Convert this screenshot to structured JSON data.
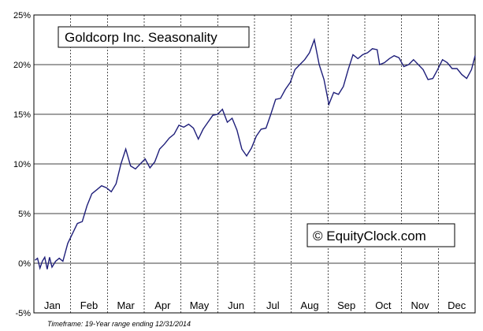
{
  "chart_data": {
    "type": "line",
    "title": "Goldcorp Inc. Seasonality",
    "watermark": "© EquityClock.com",
    "footnote": "Timeframe: 19-Year range ending 12/31/2014",
    "xlabel": "",
    "ylabel": "",
    "ylim": [
      -5,
      25
    ],
    "yticks": [
      -5,
      0,
      5,
      10,
      15,
      20,
      25
    ],
    "ytick_labels": [
      "-5%",
      "0%",
      "5%",
      "10%",
      "15%",
      "20%",
      "25%"
    ],
    "categories": [
      "Jan",
      "Feb",
      "Mar",
      "Apr",
      "May",
      "Jun",
      "Jul",
      "Aug",
      "Sep",
      "Oct",
      "Nov",
      "Dec"
    ],
    "grid": "horizontal solid, vertical dashed at month boundaries",
    "line_color": "#1f1f7a",
    "series": [
      {
        "x": [
          1,
          3,
          5,
          7,
          9,
          11,
          13,
          15,
          18,
          21,
          24,
          28,
          32,
          36,
          40,
          44,
          48,
          52,
          56,
          60,
          64,
          68,
          72,
          76,
          80,
          84,
          88,
          92,
          96,
          100,
          104,
          108,
          112,
          116,
          120,
          124,
          128,
          132,
          136,
          140,
          144,
          148,
          152,
          156,
          160,
          164,
          168,
          172,
          176,
          180,
          184,
          188,
          192,
          196,
          200,
          204,
          208,
          212,
          216,
          220,
          224,
          228,
          232,
          236,
          240,
          244,
          248,
          252,
          256,
          260,
          264,
          268,
          272,
          276,
          280,
          284,
          286,
          290,
          294,
          298,
          302,
          306,
          310,
          314,
          318,
          322,
          326,
          330,
          334,
          338,
          342,
          346,
          350,
          354,
          358,
          362,
          365
        ],
        "y": [
          0.3,
          0.5,
          -0.5,
          0.2,
          0.6,
          -0.6,
          0.6,
          -0.4,
          0.2,
          0.5,
          0.2,
          2.0,
          3.0,
          4.0,
          4.2,
          5.8,
          7.0,
          7.4,
          7.8,
          7.6,
          7.2,
          8.0,
          10.0,
          11.5,
          9.8,
          9.5,
          10.0,
          10.5,
          9.6,
          10.2,
          11.5,
          12.0,
          12.6,
          13.0,
          13.9,
          13.7,
          14.0,
          13.6,
          12.5,
          13.5,
          14.2,
          14.9,
          15.0,
          15.5,
          14.2,
          14.6,
          13.4,
          11.5,
          10.8,
          11.6,
          12.8,
          13.5,
          13.6,
          15.0,
          16.5,
          16.6,
          17.5,
          18.2,
          19.5,
          20.0,
          20.5,
          21.2,
          22.5,
          20.0,
          18.5,
          16.0,
          17.2,
          17.0,
          17.8,
          19.5,
          21.0,
          20.6,
          21.0,
          21.2,
          21.6,
          21.5,
          20.0,
          20.2,
          20.6,
          20.9,
          20.7,
          19.8,
          20.0,
          20.5,
          20.0,
          19.5,
          18.5,
          18.6,
          19.5,
          20.5,
          20.2,
          19.6,
          19.6,
          19.0,
          18.6,
          19.5,
          20.9
        ]
      }
    ]
  }
}
